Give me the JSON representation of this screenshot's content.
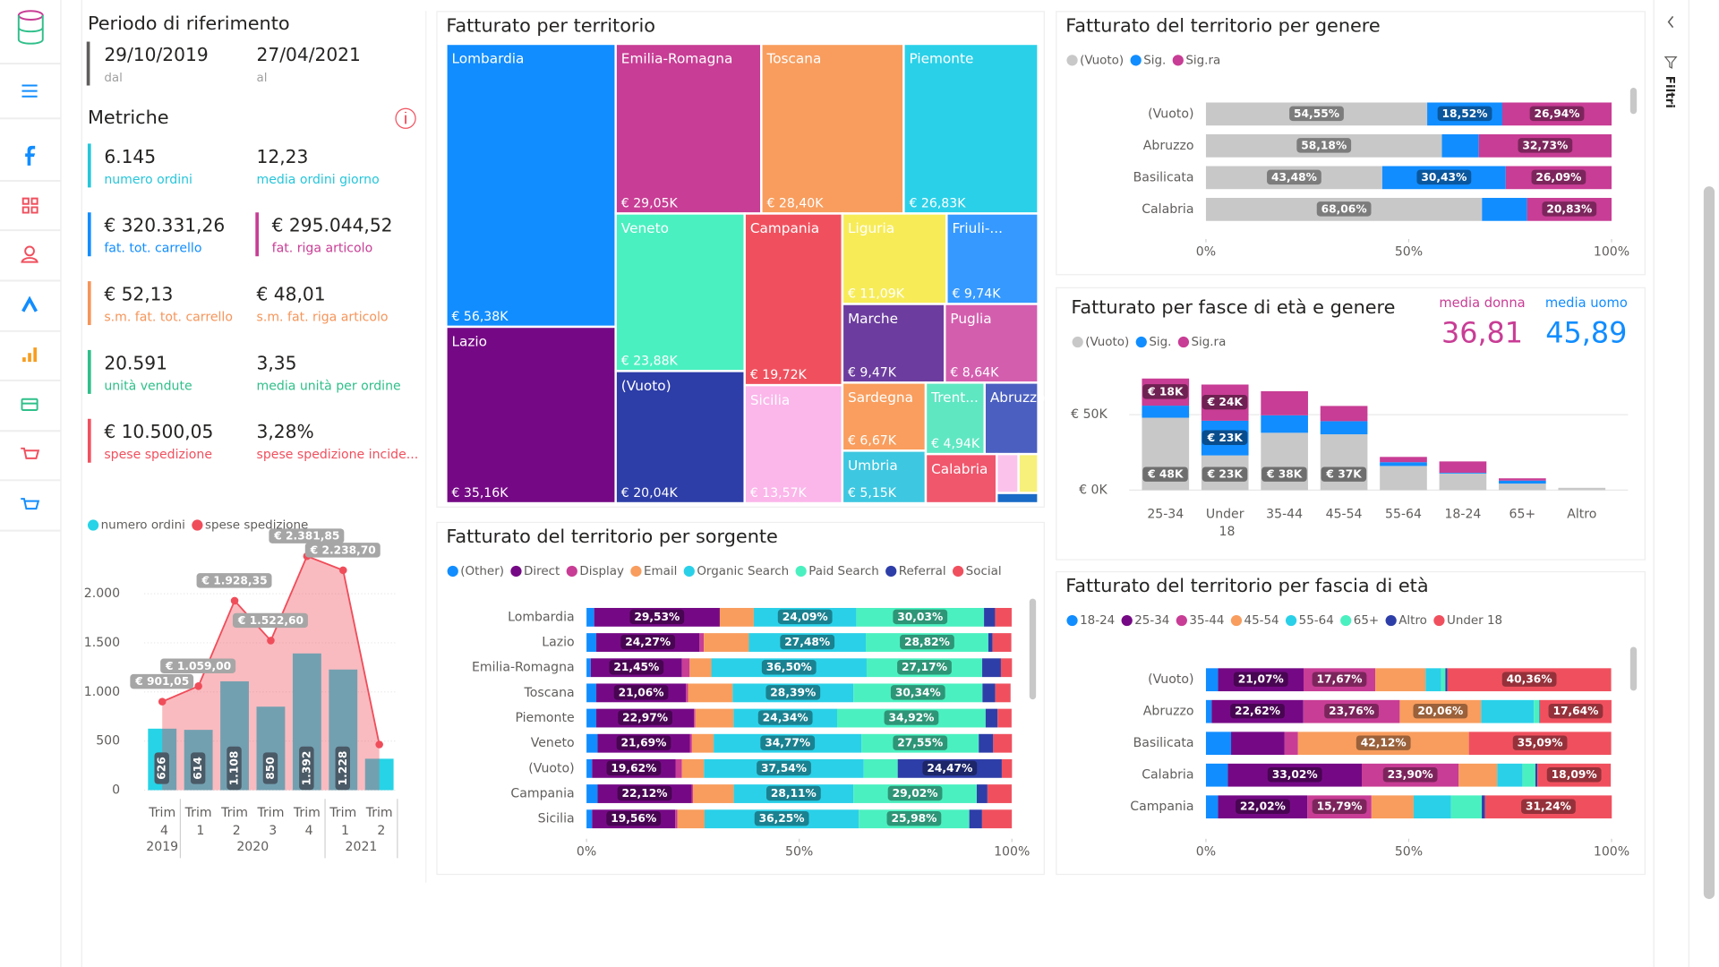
{
  "sidebar": {
    "filters_label": "Filtri"
  },
  "period": {
    "title": "Periodo di riferimento",
    "from": "29/10/2019",
    "from_label": "dal",
    "to": "27/04/2021",
    "to_label": "al"
  },
  "metrics": {
    "title": "Metriche",
    "items": [
      {
        "value": "6.145",
        "label": "numero ordini",
        "color": "#26c6da",
        "bar": true
      },
      {
        "value": "12,23",
        "label": "media ordini giorno",
        "color": "#26c6da",
        "bar": false
      },
      {
        "value": "€ 320.331,26",
        "label": "fat. tot. carrello",
        "color": "#118dff",
        "bar": true
      },
      {
        "value": "€ 295.044,52",
        "label": "fat. riga articolo",
        "color": "#c83d95",
        "bar": true
      },
      {
        "value": "€ 52,13",
        "label": "s.m. fat. tot. carrello",
        "color": "#f5955a",
        "bar": true
      },
      {
        "value": "€ 48,01",
        "label": "s.m. fat. riga articolo",
        "color": "#f5955a",
        "bar": false
      },
      {
        "value": "20.591",
        "label": "unità vendute",
        "color": "#2fbf8a",
        "bar": true
      },
      {
        "value": "3,35",
        "label": "media unità per ordine",
        "color": "#2fbf8a",
        "bar": false
      },
      {
        "value": "€ 10.500,05",
        "label": "spese spedizione",
        "color": "#f0505e",
        "bar": true
      },
      {
        "value": "3,28%",
        "label": "spese spedizione incide...",
        "color": "#f0505e",
        "bar": false
      }
    ]
  },
  "chart_data": [
    {
      "type": "combo",
      "categories": [
        "Trim 4",
        "Trim 1",
        "Trim 2",
        "Trim 3",
        "Trim 4",
        "Trim 1",
        "Trim 2"
      ],
      "x_groups": [
        {
          "label": "2019",
          "count": 1
        },
        {
          "label": "2020",
          "count": 4
        },
        {
          "label": "2021",
          "count": 2
        }
      ],
      "series": [
        {
          "name": "numero ordini",
          "type": "bar",
          "color": "#27d3e6",
          "values": [
            626,
            614,
            1108,
            850,
            1392,
            1228,
            320
          ],
          "value_labels": [
            "626",
            "614",
            "1.108",
            "850",
            "1.392",
            "1.228",
            null
          ]
        },
        {
          "name": "spese spedizione",
          "type": "line",
          "color": "#f04d5a",
          "values": [
            901.05,
            1059.0,
            1928.35,
            1522.6,
            2381.85,
            2238.7,
            465
          ],
          "value_labels": [
            "€ 901,05",
            "€ 1.059,00",
            "€ 1.928,35",
            "€ 1.522,60",
            "€ 2.381,85",
            "€ 2.238,70",
            null
          ]
        }
      ],
      "ylim": [
        0,
        2450
      ],
      "yticks": [
        0,
        500,
        {
          "value": 1000,
          "label": "1.000"
        },
        {
          "value": 1500,
          "label": "1.500"
        },
        {
          "value": 2000,
          "label": "2.000"
        }
      ],
      "grid": true
    },
    {
      "type": "treemap",
      "title": "Fatturato per territorio",
      "categories": [
        "Lombardia",
        "Lazio",
        "Emilia-Romagna",
        "Toscana",
        "Piemonte",
        "Veneto",
        "(Vuoto)",
        "Campania",
        "Sicilia",
        "Liguria",
        "Friuli-...",
        "Marche",
        "Puglia",
        "Sardegna",
        "Umbria",
        "Trent...",
        "Abruzzo",
        "Calabria",
        null,
        null,
        null
      ],
      "values": [
        56.38,
        35.16,
        29.05,
        28.4,
        26.83,
        23.88,
        20.04,
        19.72,
        13.57,
        11.09,
        9.74,
        9.47,
        8.64,
        6.67,
        5.15,
        4.94,
        4.5,
        4.1,
        1.0,
        0.9,
        0.5
      ],
      "value_labels": [
        "€ 56,38K",
        "€ 35,16K",
        "€ 29,05K",
        "€ 28,40K",
        "€ 26,83K",
        "€ 23,88K",
        "€ 20,04K",
        "€ 19,72K",
        "€ 13,57K",
        "€ 11,09K",
        "€ 9,74K",
        "€ 9,47K",
        "€ 8,64K",
        "€ 6,67K",
        "€ 5,15K",
        "€ 4,94K",
        null,
        null,
        null,
        null,
        null
      ],
      "colors": [
        "#118dff",
        "#750985",
        "#c83d95",
        "#f89d5e",
        "#2ad0e8",
        "#4bf0c0",
        "#2e3ea8",
        "#f0505e",
        "#fbb6ea",
        "#f7ec58",
        "#3599ff",
        "#6c3d9e",
        "#d45eae",
        "#f99e5e",
        "#3ec7e0",
        "#5fe7c2",
        "#4b5fc0",
        "#f0566c",
        "#fbc3ec",
        "#f7f07a",
        "#1a6bc7"
      ]
    },
    {
      "type": "stacked_bar_100",
      "title": "Fatturato del territorio per sorgente",
      "categories": [
        "Lombardia",
        "Lazio",
        "Emilia-Romagna",
        "Toscana",
        "Piemonte",
        "Veneto",
        "(Vuoto)",
        "Campania",
        "Sicilia"
      ],
      "series": [
        {
          "name": "(Other)",
          "color": "#118dff",
          "values": [
            1.8,
            2.3,
            1.0,
            2.3,
            2.3,
            2.6,
            1.3,
            2.6,
            1.3
          ],
          "value_labels": [
            null,
            null,
            null,
            null,
            null,
            null,
            null,
            null,
            null
          ]
        },
        {
          "name": "Direct",
          "color": "#750985",
          "values": [
            29.53,
            24.27,
            21.45,
            21.06,
            22.97,
            21.69,
            19.62,
            22.12,
            19.56
          ],
          "value_labels": [
            "29,53%",
            "24,27%",
            "21,45%",
            "21,06%",
            "22,97%",
            "21,69%",
            "19,62%",
            "22,12%",
            "19,56%"
          ]
        },
        {
          "name": "Display",
          "color": "#c83d95",
          "values": [
            0,
            1.0,
            1.8,
            0.5,
            0.3,
            0.5,
            1.5,
            0.3,
            0.5
          ],
          "value_labels": [
            null,
            null,
            null,
            null,
            null,
            null,
            null,
            null,
            null
          ]
        },
        {
          "name": "Email",
          "color": "#f89d5e",
          "values": [
            8.0,
            10.6,
            5.1,
            10.5,
            9.0,
            5.1,
            5.2,
            9.6,
            6.4
          ],
          "value_labels": [
            null,
            null,
            null,
            null,
            null,
            null,
            null,
            null,
            null
          ]
        },
        {
          "name": "Organic Search",
          "color": "#2ad0e8",
          "values": [
            24.09,
            27.48,
            36.5,
            28.39,
            24.34,
            34.77,
            37.54,
            28.11,
            36.25
          ],
          "value_labels": [
            "24,09%",
            "27,48%",
            "36,50%",
            "28,39%",
            "24,34%",
            "34,77%",
            "37,54%",
            "28,11%",
            "36,25%"
          ]
        },
        {
          "name": "Paid Search",
          "color": "#4bf0c0",
          "values": [
            30.03,
            28.82,
            27.17,
            30.34,
            34.92,
            27.55,
            8.0,
            29.02,
            25.98
          ],
          "value_labels": [
            "30,03%",
            "28,82%",
            "27,17%",
            "30,34%",
            "34,92%",
            "27,55%",
            null,
            "29,02%",
            "25,98%"
          ]
        },
        {
          "name": "Referral",
          "color": "#2e3ea8",
          "values": [
            2.6,
            1.0,
            4.4,
            3.0,
            2.8,
            3.4,
            24.47,
            2.5,
            3.0
          ],
          "value_labels": [
            null,
            null,
            null,
            null,
            null,
            null,
            "24,47%",
            null,
            null
          ]
        },
        {
          "name": "Social",
          "color": "#f0505e",
          "values": [
            3.9,
            4.4,
            2.6,
            3.6,
            3.3,
            4.4,
            2.4,
            5.7,
            7.0
          ],
          "value_labels": [
            null,
            null,
            null,
            null,
            null,
            null,
            null,
            null,
            null
          ]
        }
      ],
      "xlim": [
        0,
        100
      ],
      "xticks": [
        {
          "value": 0,
          "label": "0%"
        },
        {
          "value": 50,
          "label": "50%"
        },
        {
          "value": 100,
          "label": "100%"
        }
      ]
    },
    {
      "type": "stacked_bar_100",
      "title": "Fatturato del territorio per genere",
      "categories": [
        "(Vuoto)",
        "Abruzzo",
        "Basilicata",
        "Calabria"
      ],
      "series": [
        {
          "name": "(Vuoto)",
          "color": "#c8c8c8",
          "values": [
            54.55,
            58.18,
            43.48,
            68.06
          ],
          "value_labels": [
            "54,55%",
            "58,18%",
            "43,48%",
            "68,06%"
          ]
        },
        {
          "name": "Sig.",
          "color": "#118dff",
          "values": [
            18.52,
            9.09,
            30.43,
            11.11
          ],
          "value_labels": [
            "18,52%",
            null,
            "30,43%",
            null
          ]
        },
        {
          "name": "Sig.ra",
          "color": "#c83d95",
          "values": [
            26.94,
            32.73,
            26.09,
            20.83
          ],
          "value_labels": [
            "26,94%",
            "32,73%",
            "26,09%",
            "20,83%"
          ]
        }
      ],
      "xlim": [
        0,
        100
      ],
      "xticks": [
        {
          "value": 0,
          "label": "0%"
        },
        {
          "value": 50,
          "label": "50%"
        },
        {
          "value": 100,
          "label": "100%"
        }
      ]
    },
    {
      "type": "stacked_column",
      "title": "Fatturato per fasce di età e genere",
      "annotations": [
        {
          "label": "media donna",
          "value": "36,81",
          "color": "#c83d95"
        },
        {
          "label": "media uomo",
          "value": "45,89",
          "color": "#118dff"
        }
      ],
      "categories": [
        "25-34",
        "Under 18",
        "35-44",
        "45-54",
        "55-64",
        "18-24",
        "65+",
        "Altro"
      ],
      "series": [
        {
          "name": "(Vuoto)",
          "color": "#c8c8c8",
          "values": [
            48,
            23,
            38,
            37,
            16,
            11,
            4.3,
            1.5
          ],
          "value_labels": [
            "€ 48K",
            "€ 23K",
            "€ 38K",
            "€ 37K",
            null,
            null,
            null,
            null
          ]
        },
        {
          "name": "Sig.",
          "color": "#118dff",
          "values": [
            8,
            23,
            11.6,
            8.7,
            2.5,
            0.5,
            2,
            0
          ],
          "value_labels": [
            null,
            "€ 23K",
            null,
            null,
            null,
            null,
            null,
            null
          ]
        },
        {
          "name": "Sig.ra",
          "color": "#c83d95",
          "values": [
            18,
            24,
            16,
            10.1,
            3.5,
            7.5,
            1.5,
            0
          ],
          "value_labels": [
            "€ 18K",
            "€ 24K",
            null,
            null,
            null,
            null,
            null,
            null
          ]
        }
      ],
      "ylim": [
        0,
        80
      ],
      "yticks": [
        {
          "value": 0,
          "label": "€ 0K"
        },
        {
          "value": 50,
          "label": "€ 50K"
        }
      ],
      "grid": true
    },
    {
      "type": "stacked_bar_100",
      "title": "Fatturato del territorio per fascia di età",
      "categories": [
        "(Vuoto)",
        "Abruzzo",
        "Basilicata",
        "Calabria",
        "Campania"
      ],
      "series": [
        {
          "name": "18-24",
          "color": "#118dff",
          "values": [
            3.0,
            1.4,
            6.2,
            5.4,
            3.0
          ],
          "value_labels": [
            null,
            null,
            null,
            null,
            null
          ]
        },
        {
          "name": "25-34",
          "color": "#750985",
          "values": [
            21.07,
            22.62,
            13.2,
            33.02,
            22.02
          ],
          "value_labels": [
            "21,07%",
            "22,62%",
            null,
            "33,02%",
            "22,02%"
          ]
        },
        {
          "name": "35-44",
          "color": "#c83d95",
          "values": [
            17.67,
            23.76,
            3.3,
            23.9,
            15.79
          ],
          "value_labels": [
            "17,67%",
            "23,76%",
            null,
            "23,90%",
            "15,79%"
          ]
        },
        {
          "name": "45-54",
          "color": "#f89d5e",
          "values": [
            12.4,
            20.06,
            42.12,
            9.5,
            10.4
          ],
          "value_labels": [
            null,
            "20,06%",
            "42,12%",
            null,
            null
          ]
        },
        {
          "name": "55-64",
          "color": "#2ad0e8",
          "values": [
            3.8,
            13.0,
            0,
            6.2,
            9.2
          ],
          "value_labels": [
            null,
            null,
            null,
            null,
            null
          ]
        },
        {
          "name": "65+",
          "color": "#4bf0c0",
          "values": [
            1.1,
            1.4,
            0,
            3.2,
            7.6
          ],
          "value_labels": [
            null,
            null,
            null,
            null,
            null
          ]
        },
        {
          "name": "Altro",
          "color": "#2e3ea8",
          "values": [
            0.5,
            0.1,
            0,
            0.5,
            0.8
          ],
          "value_labels": [
            null,
            null,
            null,
            null,
            null
          ]
        },
        {
          "name": "Under 18",
          "color": "#f0505e",
          "values": [
            40.36,
            17.64,
            35.09,
            18.09,
            31.24
          ],
          "value_labels": [
            "40,36%",
            "17,64%",
            "35,09%",
            "18,09%",
            "31,24%"
          ]
        }
      ],
      "xlim": [
        0,
        100
      ],
      "xticks": [
        {
          "value": 0,
          "label": "0%"
        },
        {
          "value": 50,
          "label": "50%"
        },
        {
          "value": 100,
          "label": "100%"
        }
      ]
    }
  ]
}
